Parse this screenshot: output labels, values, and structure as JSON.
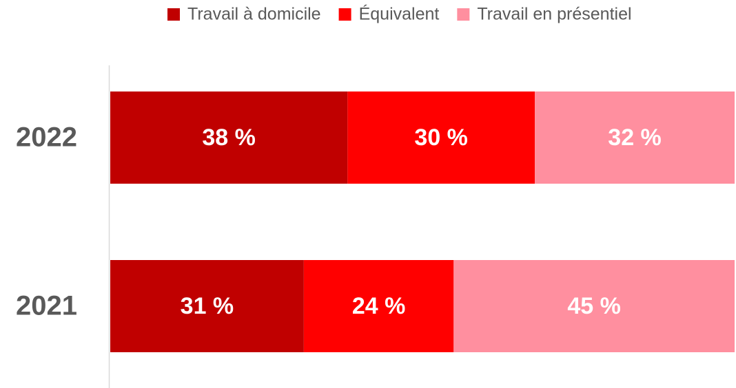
{
  "chart_data": {
    "type": "stacked_bar_horizontal",
    "categories": [
      "2022",
      "2021"
    ],
    "series": [
      {
        "name": "Travail à domicile",
        "color": "#c00000",
        "values": [
          38,
          31
        ],
        "value_labels": [
          "38 %",
          "31 %"
        ]
      },
      {
        "name": "Équivalent",
        "color": "#ff0000",
        "values": [
          30,
          24
        ],
        "value_labels": [
          "30 %",
          "24 %"
        ]
      },
      {
        "name": "Travail en présentiel",
        "color": "#ff8f9f",
        "values": [
          32,
          45
        ],
        "value_labels": [
          "32 %",
          "45 %"
        ]
      }
    ],
    "xlim": [
      0,
      100
    ],
    "legend": "top"
  }
}
